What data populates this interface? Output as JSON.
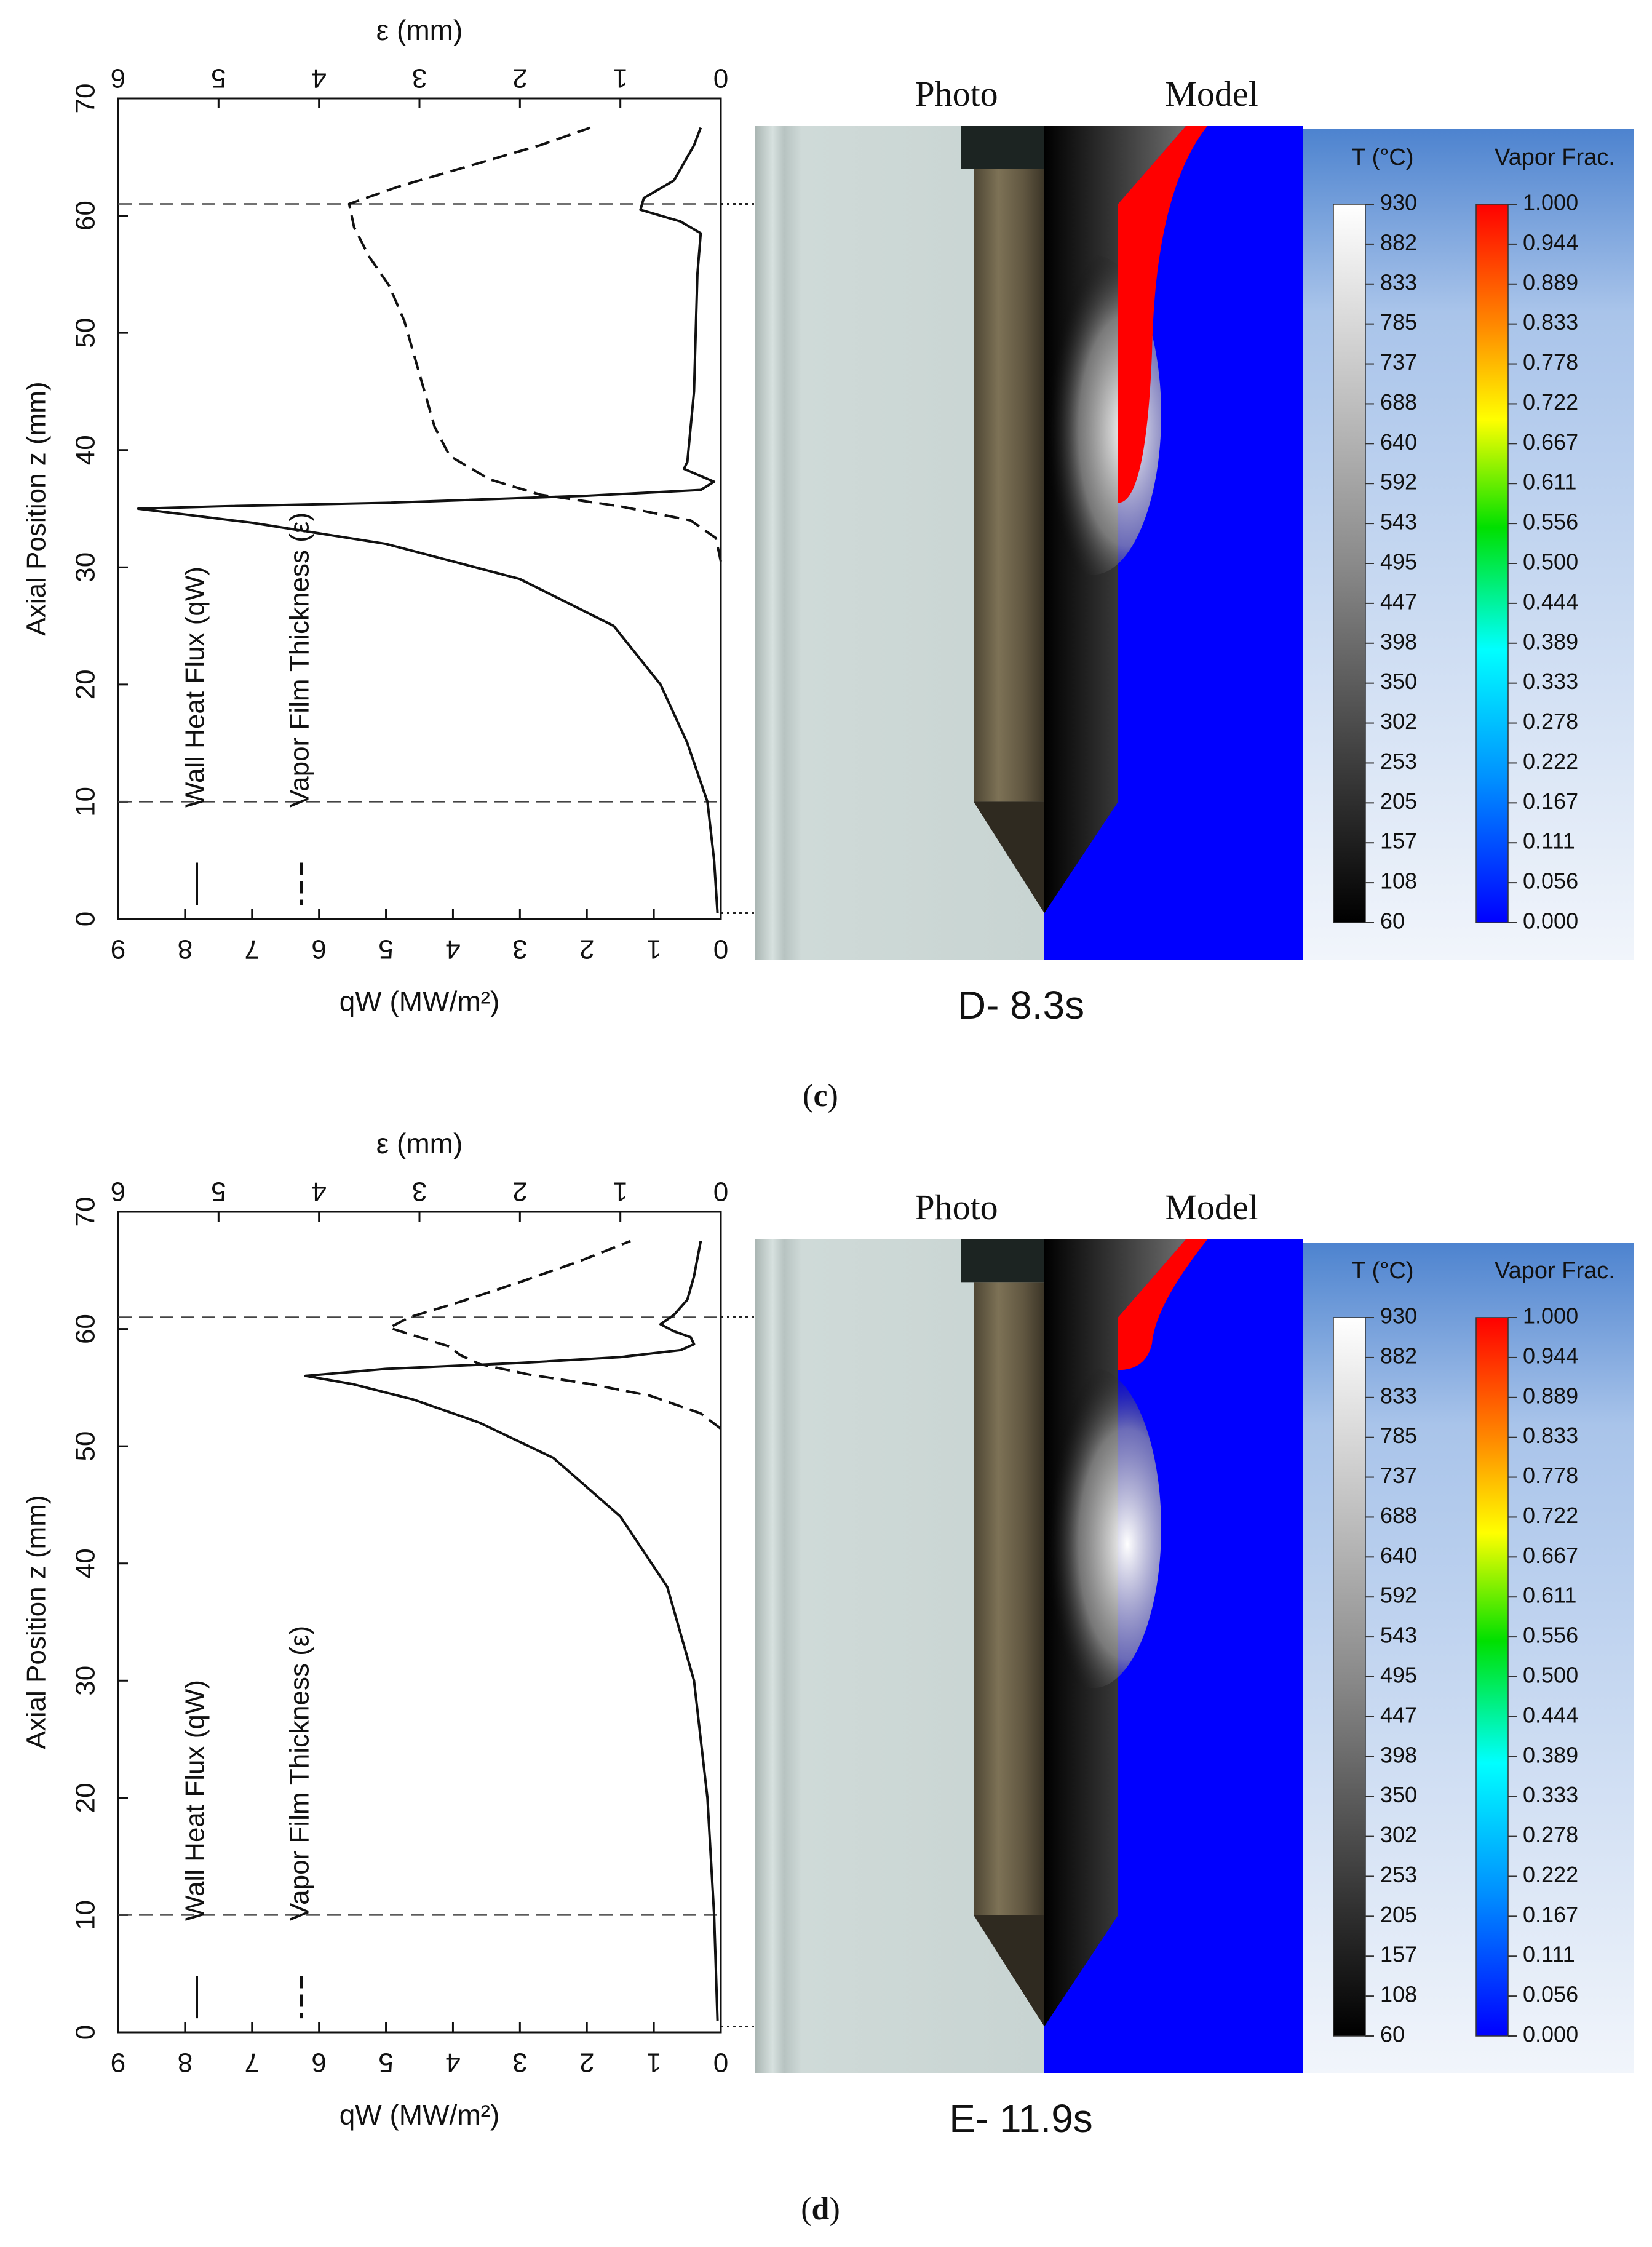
{
  "panels": [
    {
      "id": "c",
      "caption_open": "(",
      "caption_letter": "c",
      "caption_close": ")",
      "time_label": "D- 8.3s",
      "photo_label": "Photo",
      "model_label": "Model",
      "chart_data": {
        "type": "line",
        "ylabel": "Axial Position  z (mm)",
        "xlabel_bottom": "qW (MW/m²)",
        "xlabel_top": "ε (mm)",
        "xlim_bottom": [
          9,
          0
        ],
        "xlim_top": [
          6,
          0
        ],
        "ylim": [
          0,
          70
        ],
        "y_ticks": [
          "0",
          "10",
          "20",
          "30",
          "40",
          "50",
          "60",
          "70"
        ],
        "x_bottom_ticks": [
          "9",
          "8",
          "7",
          "6",
          "5",
          "4",
          "3",
          "2",
          "1",
          "0"
        ],
        "x_top_ticks": [
          "6",
          "5",
          "4",
          "3",
          "2",
          "1",
          "0"
        ],
        "reference_lines_z": [
          10,
          61
        ],
        "legend": [
          "Wall Heat Flux (qW)",
          "Vapor Film Thickness (ε)"
        ],
        "series": [
          {
            "name": "Wall Heat Flux (qW)",
            "style": "solid",
            "axis": "bottom",
            "points": [
              [
                0.05,
                0.5
              ],
              [
                0.1,
                5
              ],
              [
                0.2,
                10
              ],
              [
                0.5,
                15
              ],
              [
                0.9,
                20
              ],
              [
                1.6,
                25
              ],
              [
                3.0,
                29
              ],
              [
                5.0,
                32
              ],
              [
                7.0,
                33.8
              ],
              [
                8.7,
                35
              ],
              [
                7.5,
                35.2
              ],
              [
                5.0,
                35.5
              ],
              [
                2.0,
                36.1
              ],
              [
                0.3,
                36.6
              ],
              [
                0.1,
                37.3
              ],
              [
                0.35,
                37.9
              ],
              [
                0.55,
                38.4
              ],
              [
                0.5,
                39
              ],
              [
                0.4,
                45
              ],
              [
                0.35,
                55
              ],
              [
                0.3,
                58.5
              ],
              [
                0.6,
                59.5
              ],
              [
                1.2,
                60.5
              ],
              [
                1.15,
                61.5
              ],
              [
                0.7,
                63
              ],
              [
                0.55,
                64.5
              ],
              [
                0.4,
                66
              ],
              [
                0.3,
                67.5
              ]
            ]
          },
          {
            "name": "Vapor Film Thickness (ε)",
            "style": "dashed",
            "axis": "top",
            "points": [
              [
                0.0,
                30.5
              ],
              [
                0.05,
                32.5
              ],
              [
                0.3,
                34
              ],
              [
                1.0,
                35.2
              ],
              [
                1.8,
                36.2
              ],
              [
                2.3,
                37.5
              ],
              [
                2.7,
                39.5
              ],
              [
                2.85,
                42
              ],
              [
                2.95,
                45
              ],
              [
                3.05,
                48
              ],
              [
                3.15,
                51
              ],
              [
                3.3,
                54
              ],
              [
                3.5,
                56.5
              ],
              [
                3.65,
                59
              ],
              [
                3.7,
                61
              ],
              [
                3.2,
                62.5
              ],
              [
                2.4,
                64.5
              ],
              [
                1.8,
                66
              ],
              [
                1.3,
                67.5
              ]
            ]
          }
        ]
      },
      "t_colorbar": {
        "title": "T (°C)",
        "labels": [
          "930",
          "882",
          "833",
          "785",
          "737",
          "688",
          "640",
          "592",
          "543",
          "495",
          "447",
          "398",
          "350",
          "302",
          "253",
          "205",
          "157",
          "108",
          "60"
        ]
      },
      "vf_colorbar": {
        "title": "Vapor Frac.",
        "labels": [
          "1.000",
          "0.944",
          "0.889",
          "0.833",
          "0.778",
          "0.722",
          "0.667",
          "0.611",
          "0.556",
          "0.500",
          "0.444",
          "0.389",
          "0.333",
          "0.278",
          "0.222",
          "0.167",
          "0.111",
          "0.056",
          "0.000"
        ]
      }
    },
    {
      "id": "d",
      "caption_open": "(",
      "caption_letter": "d",
      "caption_close": ")",
      "time_label": "E- 11.9s",
      "photo_label": "Photo",
      "model_label": "Model",
      "chart_data": {
        "type": "line",
        "ylabel": "Axial Position  z (mm)",
        "xlabel_bottom": "qW (MW/m²)",
        "xlabel_top": "ε (mm)",
        "xlim_bottom": [
          9,
          0
        ],
        "xlim_top": [
          6,
          0
        ],
        "ylim": [
          0,
          70
        ],
        "y_ticks": [
          "0",
          "10",
          "20",
          "30",
          "40",
          "50",
          "60",
          "70"
        ],
        "x_bottom_ticks": [
          "9",
          "8",
          "7",
          "6",
          "5",
          "4",
          "3",
          "2",
          "1",
          "0"
        ],
        "x_top_ticks": [
          "6",
          "5",
          "4",
          "3",
          "2",
          "1",
          "0"
        ],
        "reference_lines_z": [
          10,
          61
        ],
        "legend": [
          "Wall Heat Flux  (qW)",
          "Vapor Film Thickness (ε)"
        ],
        "series": [
          {
            "name": "Wall Heat Flux (qW)",
            "style": "solid",
            "axis": "bottom",
            "points": [
              [
                0.05,
                1
              ],
              [
                0.1,
                10
              ],
              [
                0.2,
                20
              ],
              [
                0.4,
                30
              ],
              [
                0.8,
                38
              ],
              [
                1.5,
                44
              ],
              [
                2.5,
                49
              ],
              [
                3.6,
                52
              ],
              [
                4.6,
                54
              ],
              [
                5.5,
                55.3
              ],
              [
                6.2,
                56
              ],
              [
                5.0,
                56.6
              ],
              [
                3.0,
                57.1
              ],
              [
                1.5,
                57.6
              ],
              [
                0.6,
                58.2
              ],
              [
                0.4,
                58.7
              ],
              [
                0.45,
                59.3
              ],
              [
                0.7,
                59.8
              ],
              [
                0.9,
                60.4
              ],
              [
                0.7,
                61.2
              ],
              [
                0.5,
                62.5
              ],
              [
                0.4,
                64.5
              ],
              [
                0.3,
                67.5
              ]
            ]
          },
          {
            "name": "Vapor Film Thickness (ε)",
            "style": "dashed",
            "axis": "top",
            "points": [
              [
                0.0,
                51.5
              ],
              [
                0.2,
                52.8
              ],
              [
                0.7,
                54.3
              ],
              [
                1.3,
                55.3
              ],
              [
                1.9,
                56.1
              ],
              [
                2.4,
                57
              ],
              [
                2.6,
                57.8
              ],
              [
                2.7,
                58.5
              ],
              [
                3.0,
                59.3
              ],
              [
                3.3,
                60.1
              ],
              [
                3.1,
                61
              ],
              [
                2.6,
                62.3
              ],
              [
                2.0,
                64
              ],
              [
                1.4,
                65.8
              ],
              [
                0.9,
                67.5
              ]
            ]
          }
        ]
      },
      "t_colorbar": {
        "title": "T (°C)",
        "labels": [
          "930",
          "882",
          "833",
          "785",
          "737",
          "688",
          "640",
          "592",
          "543",
          "495",
          "447",
          "398",
          "350",
          "302",
          "253",
          "205",
          "157",
          "108",
          "60"
        ]
      },
      "vf_colorbar": {
        "title": "Vapor Frac.",
        "labels": [
          "1.000",
          "0.944",
          "0.889",
          "0.833",
          "0.778",
          "0.722",
          "0.667",
          "0.611",
          "0.556",
          "0.500",
          "0.444",
          "0.389",
          "0.333",
          "0.278",
          "0.222",
          "0.167",
          "0.111",
          "0.056",
          "0.000"
        ]
      }
    }
  ],
  "colors": {
    "plot_line": "#111111",
    "model_background": "#0000ff",
    "panel_blue_light": "#eef3fb",
    "panel_blue_dark": "#4d83cf",
    "photo_glass": "#c7d3d1",
    "vapor_max": "#ff0000"
  }
}
